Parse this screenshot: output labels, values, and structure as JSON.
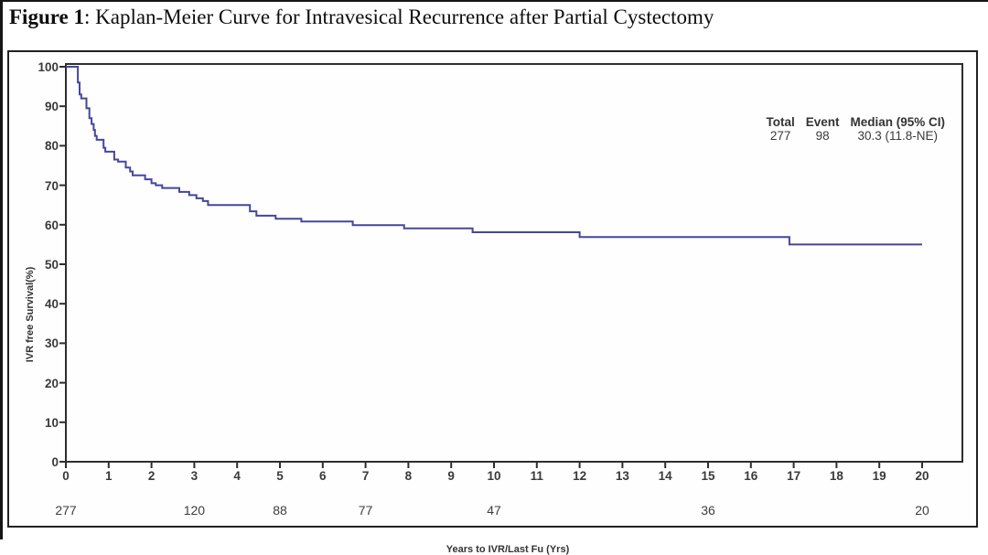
{
  "title": {
    "prefix": "Figure 1",
    "rest": ": Kaplan-Meier Curve for Intravesical Recurrence after Partial Cystectomy"
  },
  "legend": {
    "headers": [
      "Total",
      "Event",
      "Median (95% CI)"
    ],
    "values": [
      "277",
      "98",
      "30.3 (11.8-NE)"
    ]
  },
  "chart_data": {
    "type": "line",
    "subtype": "kaplan-meier-step",
    "title": "Kaplan-Meier Curve for Intravesical Recurrence after Partial Cystectomy",
    "xlabel": "Years to IVR/Last Fu (Yrs)",
    "ylabel": "IVR free Survival(%)",
    "xlim": [
      0,
      20.9
    ],
    "ylim": [
      0,
      100
    ],
    "x_ticks": [
      0,
      1,
      2,
      3,
      4,
      5,
      6,
      7,
      8,
      9,
      10,
      11,
      12,
      13,
      14,
      15,
      16,
      17,
      18,
      19,
      20
    ],
    "y_ticks": [
      0,
      10,
      20,
      30,
      40,
      50,
      60,
      70,
      80,
      90,
      100
    ],
    "grid": false,
    "legend_position": "top-right-inside",
    "line_color": "#46469b",
    "axis_color": "#2e2e2e",
    "km_steps": [
      [
        0,
        100
      ],
      [
        0.28,
        96
      ],
      [
        0.32,
        93
      ],
      [
        0.36,
        92
      ],
      [
        0.48,
        89.5
      ],
      [
        0.55,
        87
      ],
      [
        0.6,
        85.5
      ],
      [
        0.65,
        84
      ],
      [
        0.68,
        82.5
      ],
      [
        0.72,
        81.5
      ],
      [
        0.88,
        79.5
      ],
      [
        0.92,
        78.5
      ],
      [
        1.13,
        76.5
      ],
      [
        1.22,
        76
      ],
      [
        1.4,
        74.5
      ],
      [
        1.5,
        73.5
      ],
      [
        1.56,
        72.5
      ],
      [
        1.85,
        71.5
      ],
      [
        2.0,
        70.5
      ],
      [
        2.1,
        70
      ],
      [
        2.25,
        69.3
      ],
      [
        2.65,
        68.3
      ],
      [
        2.88,
        67.5
      ],
      [
        3.05,
        66.7
      ],
      [
        3.2,
        66
      ],
      [
        3.32,
        65
      ],
      [
        4.3,
        63.4
      ],
      [
        4.45,
        62.3
      ],
      [
        4.9,
        61.5
      ],
      [
        5.5,
        60.8
      ],
      [
        6.7,
        59.9
      ],
      [
        7.9,
        59.1
      ],
      [
        9.5,
        58.1
      ],
      [
        12.0,
        56.9
      ],
      [
        16.9,
        55.0
      ]
    ],
    "end_time": 20,
    "summary": {
      "total": 277,
      "events": 98,
      "median": "30.3",
      "ci_95": "11.8-NE"
    },
    "at_risk": {
      "times": [
        0,
        3,
        5,
        7,
        10,
        15,
        20
      ],
      "counts": [
        277,
        120,
        88,
        77,
        47,
        36,
        20
      ]
    }
  }
}
